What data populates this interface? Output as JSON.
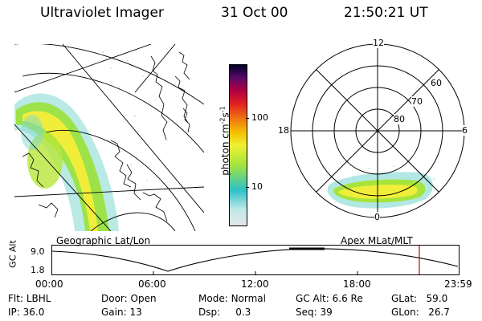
{
  "header": {
    "instrument": "Ultraviolet Imager",
    "date": "31 Oct 00",
    "time": "21:50:21 UT"
  },
  "geo_panel": {
    "caption": "Geographic Lat/Lon"
  },
  "colorbar": {
    "unit_label": "photon cm",
    "unit_sup1": "-2",
    "unit_mid": "s",
    "unit_sup2": "-1",
    "tick_100": "100",
    "tick_10": "10",
    "colors": [
      "#e6e6e6",
      "#bfe8e8",
      "#2ec0c8",
      "#a6e43c",
      "#f0f032",
      "#f5c000",
      "#f07a14",
      "#e02020",
      "#b00040",
      "#5a0a6a",
      "#000028"
    ]
  },
  "polar_panel": {
    "caption": "Apex MLat/MLT",
    "labels": {
      "top": "12",
      "left": "18",
      "right": "6",
      "bottom": "0",
      "ring60": "60",
      "ring70": "70",
      "ring80": "80"
    }
  },
  "altitude_plot": {
    "axis_label": "GC Alt",
    "y_top": "9.0",
    "y_bottom": "1.8",
    "x_ticks": [
      "00:00",
      "06:00",
      "12:00",
      "18:00",
      "23:59"
    ]
  },
  "info": {
    "filter_label": "Flt:",
    "filter_value": "LBHL",
    "door_label": "Door:",
    "door_value": "Open",
    "mode_label": "Mode:",
    "mode_value": "Normal",
    "gcalt_label": "GC Alt:",
    "gcalt_value": "6.6 Re",
    "glat_label": "GLat:",
    "glat_value": "59.0",
    "ip_label": "IP:",
    "ip_value": "36.0",
    "gain_label": "Gain:",
    "gain_value": "13",
    "dsp_label": "Dsp:",
    "dsp_value": "0.3",
    "seq_label": "Seq:",
    "seq_value": "39",
    "glon_label": "GLon:",
    "glon_value": "26.7"
  }
}
